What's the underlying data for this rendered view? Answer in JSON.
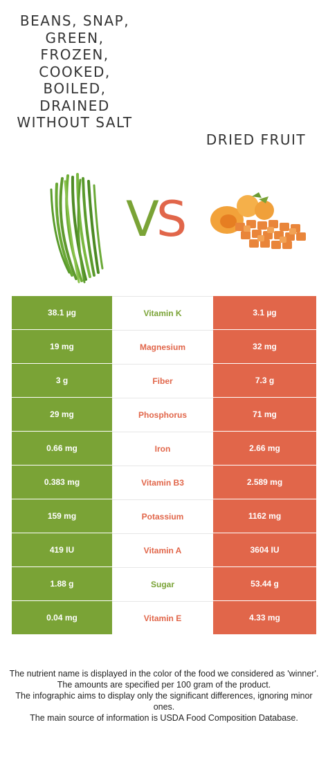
{
  "left_food": {
    "title": "BEANS, SNAP, GREEN, FROZEN, COOKED, BOILED, DRAINED WITHOUT SALT",
    "color": "#7aa336"
  },
  "right_food": {
    "title": "DRIED FRUIT",
    "color": "#e1664a"
  },
  "vs": {
    "v": "V",
    "s": "S"
  },
  "rows": [
    {
      "left": "38.1 µg",
      "nutrient": "Vitamin K",
      "right": "3.1 µg",
      "winner": "left"
    },
    {
      "left": "19 mg",
      "nutrient": "Magnesium",
      "right": "32 mg",
      "winner": "right"
    },
    {
      "left": "3 g",
      "nutrient": "Fiber",
      "right": "7.3 g",
      "winner": "right"
    },
    {
      "left": "29 mg",
      "nutrient": "Phosphorus",
      "right": "71 mg",
      "winner": "right"
    },
    {
      "left": "0.66 mg",
      "nutrient": "Iron",
      "right": "2.66 mg",
      "winner": "right"
    },
    {
      "left": "0.383 mg",
      "nutrient": "Vitamin B3",
      "right": "2.589 mg",
      "winner": "right"
    },
    {
      "left": "159 mg",
      "nutrient": "Potassium",
      "right": "1162 mg",
      "winner": "right"
    },
    {
      "left": "419 IU",
      "nutrient": "Vitamin A",
      "right": "3604 IU",
      "winner": "right"
    },
    {
      "left": "1.88 g",
      "nutrient": "Sugar",
      "right": "53.44 g",
      "winner": "left"
    },
    {
      "left": "0.04 mg",
      "nutrient": "Vitamin E",
      "right": "4.33 mg",
      "winner": "right"
    }
  ],
  "footer": {
    "line1": "The nutrient name is displayed in the color of the food we considered as 'winner'.",
    "line2": "The amounts are specified per 100 gram of the product.",
    "line3": "The infographic aims to display only the significant differences, ignoring minor ones.",
    "line4": "The main source of information is USDA Food Composition Database."
  }
}
